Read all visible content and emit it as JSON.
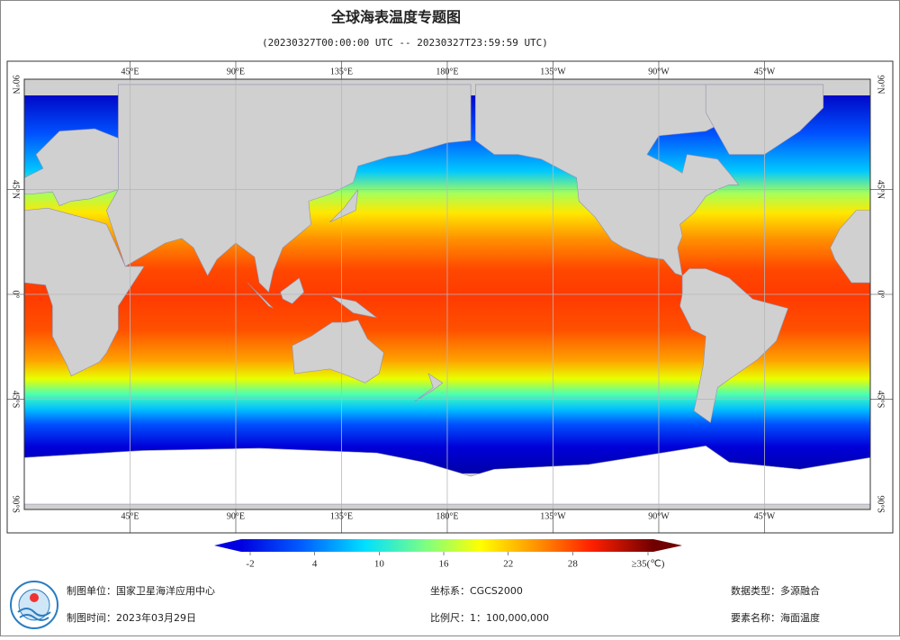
{
  "title": "全球海表温度专题图",
  "subtitle": "(20230327T00:00:00 UTC -- 20230327T23:59:59 UTC)",
  "map": {
    "lon_labels": [
      "45°E",
      "90°E",
      "135°E",
      "180°E",
      "135°W",
      "90°W",
      "45°W"
    ],
    "lat_labels": [
      "90°N",
      "45°N",
      "0°",
      "45°S",
      "90°S"
    ]
  },
  "colorbar": {
    "ticks": [
      -2,
      4,
      10,
      16,
      22,
      28,
      {
        "value": 35,
        "label": "≥35(℃)"
      }
    ]
  },
  "footer": {
    "unit": "制图单位：国家卫星海洋应用中心",
    "time": "制图时间：2023年03月29日",
    "crs": "坐标系：CGCS2000",
    "scale": "比例尺：1：100,000,000",
    "data_type": "数据类型：多源融合",
    "element": "要素名称：海面温度"
  }
}
